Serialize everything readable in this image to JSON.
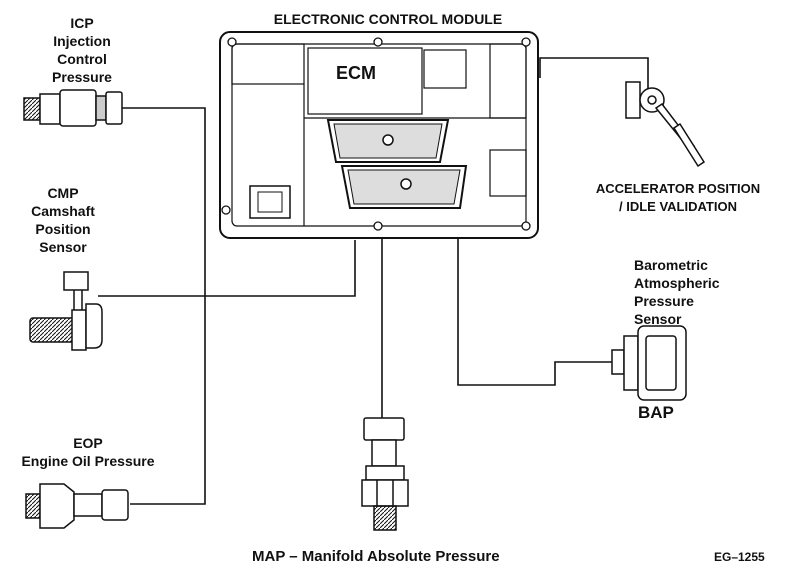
{
  "title": "ELECTRONIC CONTROL MODULE",
  "ecm_label": "ECM",
  "sensors": {
    "icp": {
      "abbr": "ICP",
      "line1": "Injection",
      "line2": "Control",
      "line3": "Pressure"
    },
    "cmp": {
      "abbr": "CMP",
      "line1": "Camshaft",
      "line2": "Position",
      "line3": "Sensor"
    },
    "eop": {
      "abbr": "EOP",
      "name": "Engine Oil Pressure"
    },
    "map": {
      "name": "MAP – Manifold Absolute Pressure"
    },
    "app": {
      "line1": "ACCELERATOR POSITION",
      "line2": "/ IDLE VALIDATION"
    },
    "bap": {
      "line1": "Barometric",
      "line2": "Atmospheric",
      "line3": "Pressure",
      "line4": "Sensor",
      "abbr": "BAP"
    }
  },
  "figure_id": "EG–1255"
}
